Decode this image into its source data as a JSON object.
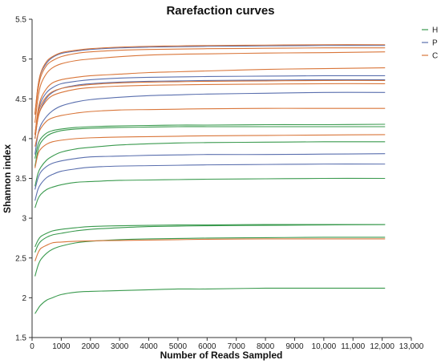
{
  "chart_data": {
    "type": "line",
    "title": "Rarefaction curves",
    "xlabel": "Number of Reads Sampled",
    "ylabel": "Shannon index",
    "xlim": [
      0,
      13000
    ],
    "ylim": [
      1.5,
      5.5
    ],
    "xticks": [
      0,
      1000,
      2000,
      3000,
      4000,
      5000,
      6000,
      7000,
      8000,
      9000,
      10000,
      11000,
      12000,
      13000
    ],
    "xtick_labels": [
      "0",
      "1000",
      "2000",
      "3000",
      "4000",
      "5000",
      "6000",
      "7000",
      "8000",
      "9000",
      "10,000",
      "11,000",
      "12,000",
      "13,000"
    ],
    "yticks": [
      1.5,
      2,
      2.5,
      3,
      3.5,
      4,
      4.5,
      5,
      5.5
    ],
    "ytick_labels": [
      "1.5",
      "2",
      "2.5",
      "3",
      "3.5",
      "4",
      "4.5",
      "5",
      "5.5"
    ],
    "grid": false,
    "legend": {
      "placement": "top-right",
      "entries": [
        {
          "label": "H",
          "color": "#3a9a4e"
        },
        {
          "label": "P",
          "color": "#5a6fae"
        },
        {
          "label": "C",
          "color": "#d9763a"
        }
      ]
    },
    "x": [
      100,
      200,
      300,
      500,
      700,
      1000,
      1500,
      2000,
      3000,
      4000,
      5000,
      6000,
      8000,
      10000,
      12100
    ],
    "series": [
      {
        "group": "H",
        "values": [
          1.8,
          1.86,
          1.91,
          1.97,
          2.0,
          2.04,
          2.07,
          2.08,
          2.09,
          2.1,
          2.11,
          2.11,
          2.12,
          2.12,
          2.12
        ]
      },
      {
        "group": "H",
        "values": [
          2.27,
          2.4,
          2.48,
          2.56,
          2.61,
          2.65,
          2.69,
          2.71,
          2.73,
          2.74,
          2.745,
          2.75,
          2.755,
          2.76,
          2.76
        ]
      },
      {
        "group": "H",
        "values": [
          2.57,
          2.66,
          2.71,
          2.76,
          2.79,
          2.81,
          2.84,
          2.86,
          2.88,
          2.895,
          2.9,
          2.905,
          2.91,
          2.915,
          2.92
        ]
      },
      {
        "group": "H",
        "values": [
          2.64,
          2.72,
          2.77,
          2.81,
          2.84,
          2.86,
          2.88,
          2.895,
          2.905,
          2.91,
          2.915,
          2.915,
          2.92,
          2.92,
          2.92
        ]
      },
      {
        "group": "H",
        "values": [
          3.13,
          3.24,
          3.3,
          3.36,
          3.39,
          3.42,
          3.45,
          3.46,
          3.475,
          3.48,
          3.485,
          3.49,
          3.495,
          3.5,
          3.5
        ]
      },
      {
        "group": "H",
        "values": [
          3.4,
          3.56,
          3.64,
          3.73,
          3.78,
          3.83,
          3.87,
          3.89,
          3.92,
          3.935,
          3.945,
          3.95,
          3.955,
          3.96,
          3.96
        ]
      },
      {
        "group": "H",
        "values": [
          3.65,
          3.85,
          3.95,
          4.03,
          4.07,
          4.1,
          4.12,
          4.13,
          4.14,
          4.145,
          4.15,
          4.15,
          4.15,
          4.15,
          4.15
        ]
      },
      {
        "group": "H",
        "values": [
          3.75,
          3.92,
          4.0,
          4.07,
          4.1,
          4.12,
          4.14,
          4.15,
          4.16,
          4.165,
          4.17,
          4.17,
          4.175,
          4.175,
          4.18
        ]
      },
      {
        "group": "P",
        "values": [
          3.22,
          3.36,
          3.43,
          3.51,
          3.55,
          3.59,
          3.62,
          3.64,
          3.655,
          3.66,
          3.665,
          3.67,
          3.675,
          3.68,
          3.68
        ]
      },
      {
        "group": "P",
        "values": [
          3.36,
          3.5,
          3.58,
          3.65,
          3.69,
          3.72,
          3.75,
          3.77,
          3.78,
          3.79,
          3.795,
          3.8,
          3.8,
          3.805,
          3.81
        ]
      },
      {
        "group": "P",
        "values": [
          3.8,
          4.05,
          4.17,
          4.28,
          4.35,
          4.41,
          4.46,
          4.49,
          4.52,
          4.54,
          4.55,
          4.56,
          4.57,
          4.58,
          4.58
        ]
      },
      {
        "group": "P",
        "values": [
          4.0,
          4.25,
          4.38,
          4.51,
          4.58,
          4.63,
          4.67,
          4.69,
          4.71,
          4.72,
          4.725,
          4.73,
          4.735,
          4.74,
          4.74
        ]
      },
      {
        "group": "P",
        "values": [
          4.05,
          4.32,
          4.46,
          4.58,
          4.64,
          4.69,
          4.72,
          4.74,
          4.76,
          4.77,
          4.775,
          4.78,
          4.785,
          4.79,
          4.79
        ]
      },
      {
        "group": "P",
        "values": [
          4.3,
          4.65,
          4.82,
          4.95,
          5.02,
          5.07,
          5.1,
          5.12,
          5.14,
          5.15,
          5.155,
          5.16,
          5.165,
          5.17,
          5.17
        ]
      },
      {
        "group": "C",
        "values": [
          2.46,
          2.56,
          2.62,
          2.66,
          2.69,
          2.7,
          2.71,
          2.715,
          2.72,
          2.725,
          2.73,
          2.735,
          2.74,
          2.74,
          2.74
        ]
      },
      {
        "group": "C",
        "values": [
          3.63,
          3.8,
          3.87,
          3.93,
          3.96,
          3.98,
          4.0,
          4.01,
          4.02,
          4.025,
          4.03,
          4.035,
          4.04,
          4.045,
          4.05
        ]
      },
      {
        "group": "C",
        "values": [
          3.9,
          4.05,
          4.13,
          4.22,
          4.26,
          4.29,
          4.32,
          4.34,
          4.36,
          4.365,
          4.37,
          4.375,
          4.38,
          4.38,
          4.38
        ]
      },
      {
        "group": "C",
        "values": [
          4.0,
          4.25,
          4.37,
          4.48,
          4.54,
          4.58,
          4.62,
          4.64,
          4.66,
          4.67,
          4.675,
          4.68,
          4.685,
          4.69,
          4.69
        ]
      },
      {
        "group": "C",
        "values": [
          4.05,
          4.3,
          4.42,
          4.53,
          4.59,
          4.63,
          4.66,
          4.68,
          4.7,
          4.71,
          4.715,
          4.72,
          4.725,
          4.73,
          4.73
        ]
      },
      {
        "group": "C",
        "values": [
          4.05,
          4.35,
          4.5,
          4.63,
          4.7,
          4.74,
          4.77,
          4.79,
          4.81,
          4.83,
          4.84,
          4.85,
          4.87,
          4.88,
          4.89
        ]
      },
      {
        "group": "C",
        "values": [
          4.2,
          4.5,
          4.68,
          4.82,
          4.89,
          4.94,
          4.98,
          5.0,
          5.03,
          5.05,
          5.06,
          5.065,
          5.075,
          5.08,
          5.09
        ]
      },
      {
        "group": "C",
        "values": [
          4.3,
          4.6,
          4.78,
          4.92,
          4.98,
          5.03,
          5.07,
          5.09,
          5.11,
          5.12,
          5.125,
          5.13,
          5.135,
          5.14,
          5.14
        ]
      },
      {
        "group": "C",
        "values": [
          4.32,
          4.65,
          4.83,
          4.97,
          5.03,
          5.08,
          5.11,
          5.13,
          5.15,
          5.16,
          5.165,
          5.17,
          5.175,
          5.18,
          5.18
        ]
      }
    ]
  }
}
